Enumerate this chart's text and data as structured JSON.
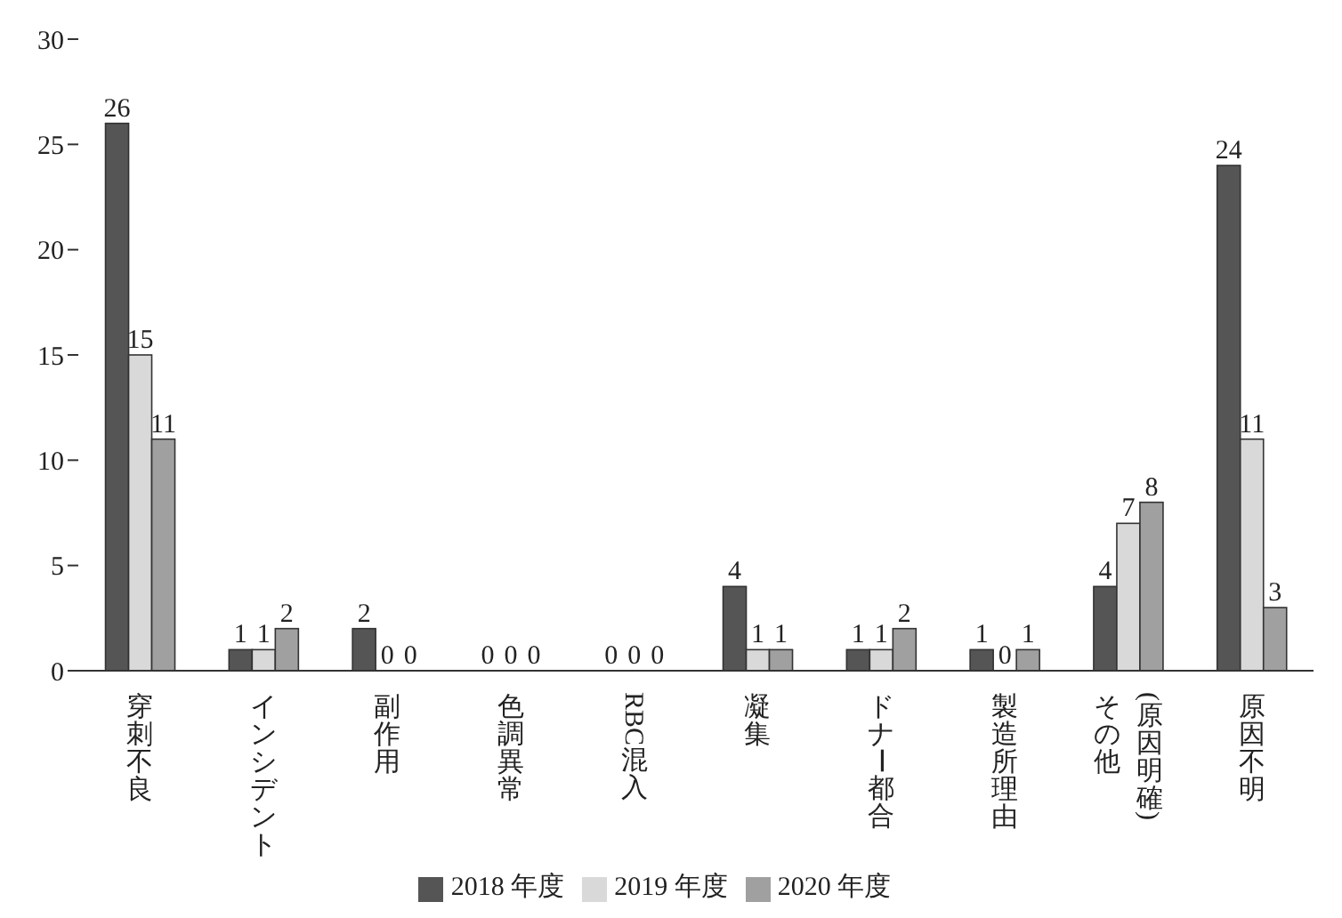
{
  "chart_data": {
    "type": "bar",
    "categories": [
      "穿刺不良",
      "インシデント",
      "副作用",
      "色調異常",
      "RBC混入",
      "凝集",
      "ドナー都合",
      "製造所理由",
      "その他\n(原因明確)",
      "原因不明"
    ],
    "series": [
      {
        "name": "2018 年度",
        "color": "#555555",
        "values": [
          26,
          1,
          2,
          0,
          0,
          4,
          1,
          1,
          4,
          24
        ]
      },
      {
        "name": "2019 年度",
        "color": "#d9d9d9",
        "values": [
          15,
          1,
          0,
          0,
          0,
          1,
          1,
          0,
          7,
          11
        ]
      },
      {
        "name": "2020 年度",
        "color": "#a0a0a0",
        "values": [
          11,
          2,
          0,
          0,
          0,
          1,
          2,
          1,
          8,
          3
        ]
      }
    ],
    "ylim": [
      0,
      30
    ],
    "yticks": [
      0,
      5,
      10,
      15,
      20,
      25,
      30
    ],
    "grid": false,
    "legend": "bottom",
    "data_labels": true
  }
}
